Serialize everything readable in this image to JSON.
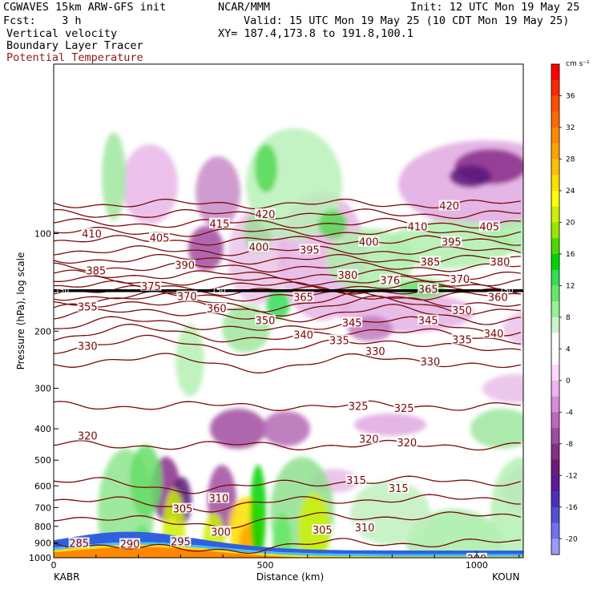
{
  "header": {
    "line1_left": "CGWAVES 15km ARW-GFS init",
    "line1_mid": "NCAR/MMM",
    "line1_right": "Init: 12 UTC Mon 19 May 25",
    "line2_left": "Fcst:    3 h",
    "line2_right": "Valid: 15 UTC Mon 19 May 25 (10 CDT Mon 19 May 25)",
    "line3_left": "Vertical velocity",
    "line3_right": "XY= 187.4,173.8 to 191.8,100.1",
    "line4_left": "Boundary Layer Tracer",
    "line5_left": "Potential Temperature"
  },
  "colors": {
    "theta_contour": "#7a0a0a",
    "heavy_line": "#000000",
    "title_red": "#8b1a1a"
  },
  "chart_data": {
    "type": "heatmap",
    "title": "Vertical velocity",
    "xlabel": "Distance (km)",
    "ylabel": "Pressure (hPa), log scale",
    "x_ticks": [
      0,
      500,
      1000
    ],
    "x_range": [
      0,
      1110
    ],
    "x_endpoints": [
      "KABR",
      "KOUN"
    ],
    "y_ticks": [
      100,
      200,
      300,
      400,
      500,
      600,
      700,
      800,
      900,
      1000
    ],
    "y_scale": "log",
    "y_range": [
      1000,
      30
    ],
    "colorbar": {
      "unit": "cm s⁻¹",
      "ticks": [
        36,
        32,
        28,
        24,
        20,
        16,
        12,
        8,
        4,
        0,
        -4,
        -8,
        -12,
        -16,
        -20
      ],
      "colors": [
        "#ff0000",
        "#ff2800",
        "#ff4d00",
        "#ff6a00",
        "#ff8800",
        "#ffa200",
        "#ffbf00",
        "#ffdf00",
        "#ffff00",
        "#ccf000",
        "#99e600",
        "#4cd900",
        "#00d400",
        "#33dd55",
        "#66e866",
        "#99f099",
        "#ccf5cc",
        "#ffffff",
        "#ffffff",
        "#ffd9ff",
        "#f0b2f0",
        "#d98cd9",
        "#c066c0",
        "#a04ca0",
        "#882d88",
        "#701a7a",
        "#5a1a9a",
        "#4a30b8",
        "#5050d9",
        "#7070f0",
        "#9a9aff"
      ]
    },
    "contour_field": "Potential Temperature",
    "theta_labels": [
      {
        "v": 420,
        "x": 500,
        "p": 87
      },
      {
        "v": 420,
        "x": 935,
        "p": 82
      },
      {
        "v": 415,
        "x": 392,
        "p": 93
      },
      {
        "v": 410,
        "x": 90,
        "p": 100
      },
      {
        "v": 410,
        "x": 860,
        "p": 95
      },
      {
        "v": 405,
        "x": 250,
        "p": 103
      },
      {
        "v": 405,
        "x": 1030,
        "p": 95
      },
      {
        "v": 400,
        "x": 485,
        "p": 110
      },
      {
        "v": 400,
        "x": 745,
        "p": 106
      },
      {
        "v": 395,
        "x": 605,
        "p": 112
      },
      {
        "v": 395,
        "x": 940,
        "p": 106
      },
      {
        "v": 390,
        "x": 310,
        "p": 125
      },
      {
        "v": 385,
        "x": 100,
        "p": 130
      },
      {
        "v": 385,
        "x": 890,
        "p": 122
      },
      {
        "v": 380,
        "x": 695,
        "p": 134
      },
      {
        "v": 380,
        "x": 1055,
        "p": 122
      },
      {
        "v": 376,
        "x": 795,
        "p": 139
      },
      {
        "v": 375,
        "x": 230,
        "p": 145
      },
      {
        "v": 370,
        "x": 315,
        "p": 156
      },
      {
        "v": 370,
        "x": 960,
        "p": 138
      },
      {
        "v": 365,
        "x": 590,
        "p": 157
      },
      {
        "v": 365,
        "x": 885,
        "p": 148
      },
      {
        "v": 360,
        "x": 385,
        "p": 170
      },
      {
        "v": 360,
        "x": 1050,
        "p": 157
      },
      {
        "v": 355,
        "x": 80,
        "p": 168
      },
      {
        "v": 350,
        "x": 500,
        "p": 185
      },
      {
        "v": 350,
        "x": 965,
        "p": 172
      },
      {
        "v": 345,
        "x": 705,
        "p": 188
      },
      {
        "v": 345,
        "x": 885,
        "p": 185
      },
      {
        "v": 340,
        "x": 590,
        "p": 205
      },
      {
        "v": 340,
        "x": 1040,
        "p": 203
      },
      {
        "v": 335,
        "x": 675,
        "p": 213
      },
      {
        "v": 335,
        "x": 965,
        "p": 212
      },
      {
        "v": 330,
        "x": 80,
        "p": 222
      },
      {
        "v": 330,
        "x": 760,
        "p": 230
      },
      {
        "v": 330,
        "x": 890,
        "p": 248
      },
      {
        "v": 325,
        "x": 720,
        "p": 340
      },
      {
        "v": 325,
        "x": 828,
        "p": 345
      },
      {
        "v": 320,
        "x": 80,
        "p": 420
      },
      {
        "v": 320,
        "x": 745,
        "p": 430
      },
      {
        "v": 320,
        "x": 835,
        "p": 440
      },
      {
        "v": 315,
        "x": 715,
        "p": 575
      },
      {
        "v": 315,
        "x": 815,
        "p": 610
      },
      {
        "v": 310,
        "x": 390,
        "p": 655
      },
      {
        "v": 310,
        "x": 735,
        "p": 805
      },
      {
        "v": 305,
        "x": 305,
        "p": 705
      },
      {
        "v": 305,
        "x": 635,
        "p": 820
      },
      {
        "v": 300,
        "x": 395,
        "p": 830
      },
      {
        "v": 300,
        "x": 1000,
        "p": 1005
      },
      {
        "v": 295,
        "x": 300,
        "p": 890
      },
      {
        "v": 290,
        "x": 180,
        "p": 905
      },
      {
        "v": 285,
        "x": 60,
        "p": 900
      }
    ],
    "heavy_contour_label": "150",
    "heavy_contour_p": 150,
    "heavy_label_x": [
      20,
      390,
      1070
    ],
    "grid": false,
    "legend": "colorbar-right"
  }
}
